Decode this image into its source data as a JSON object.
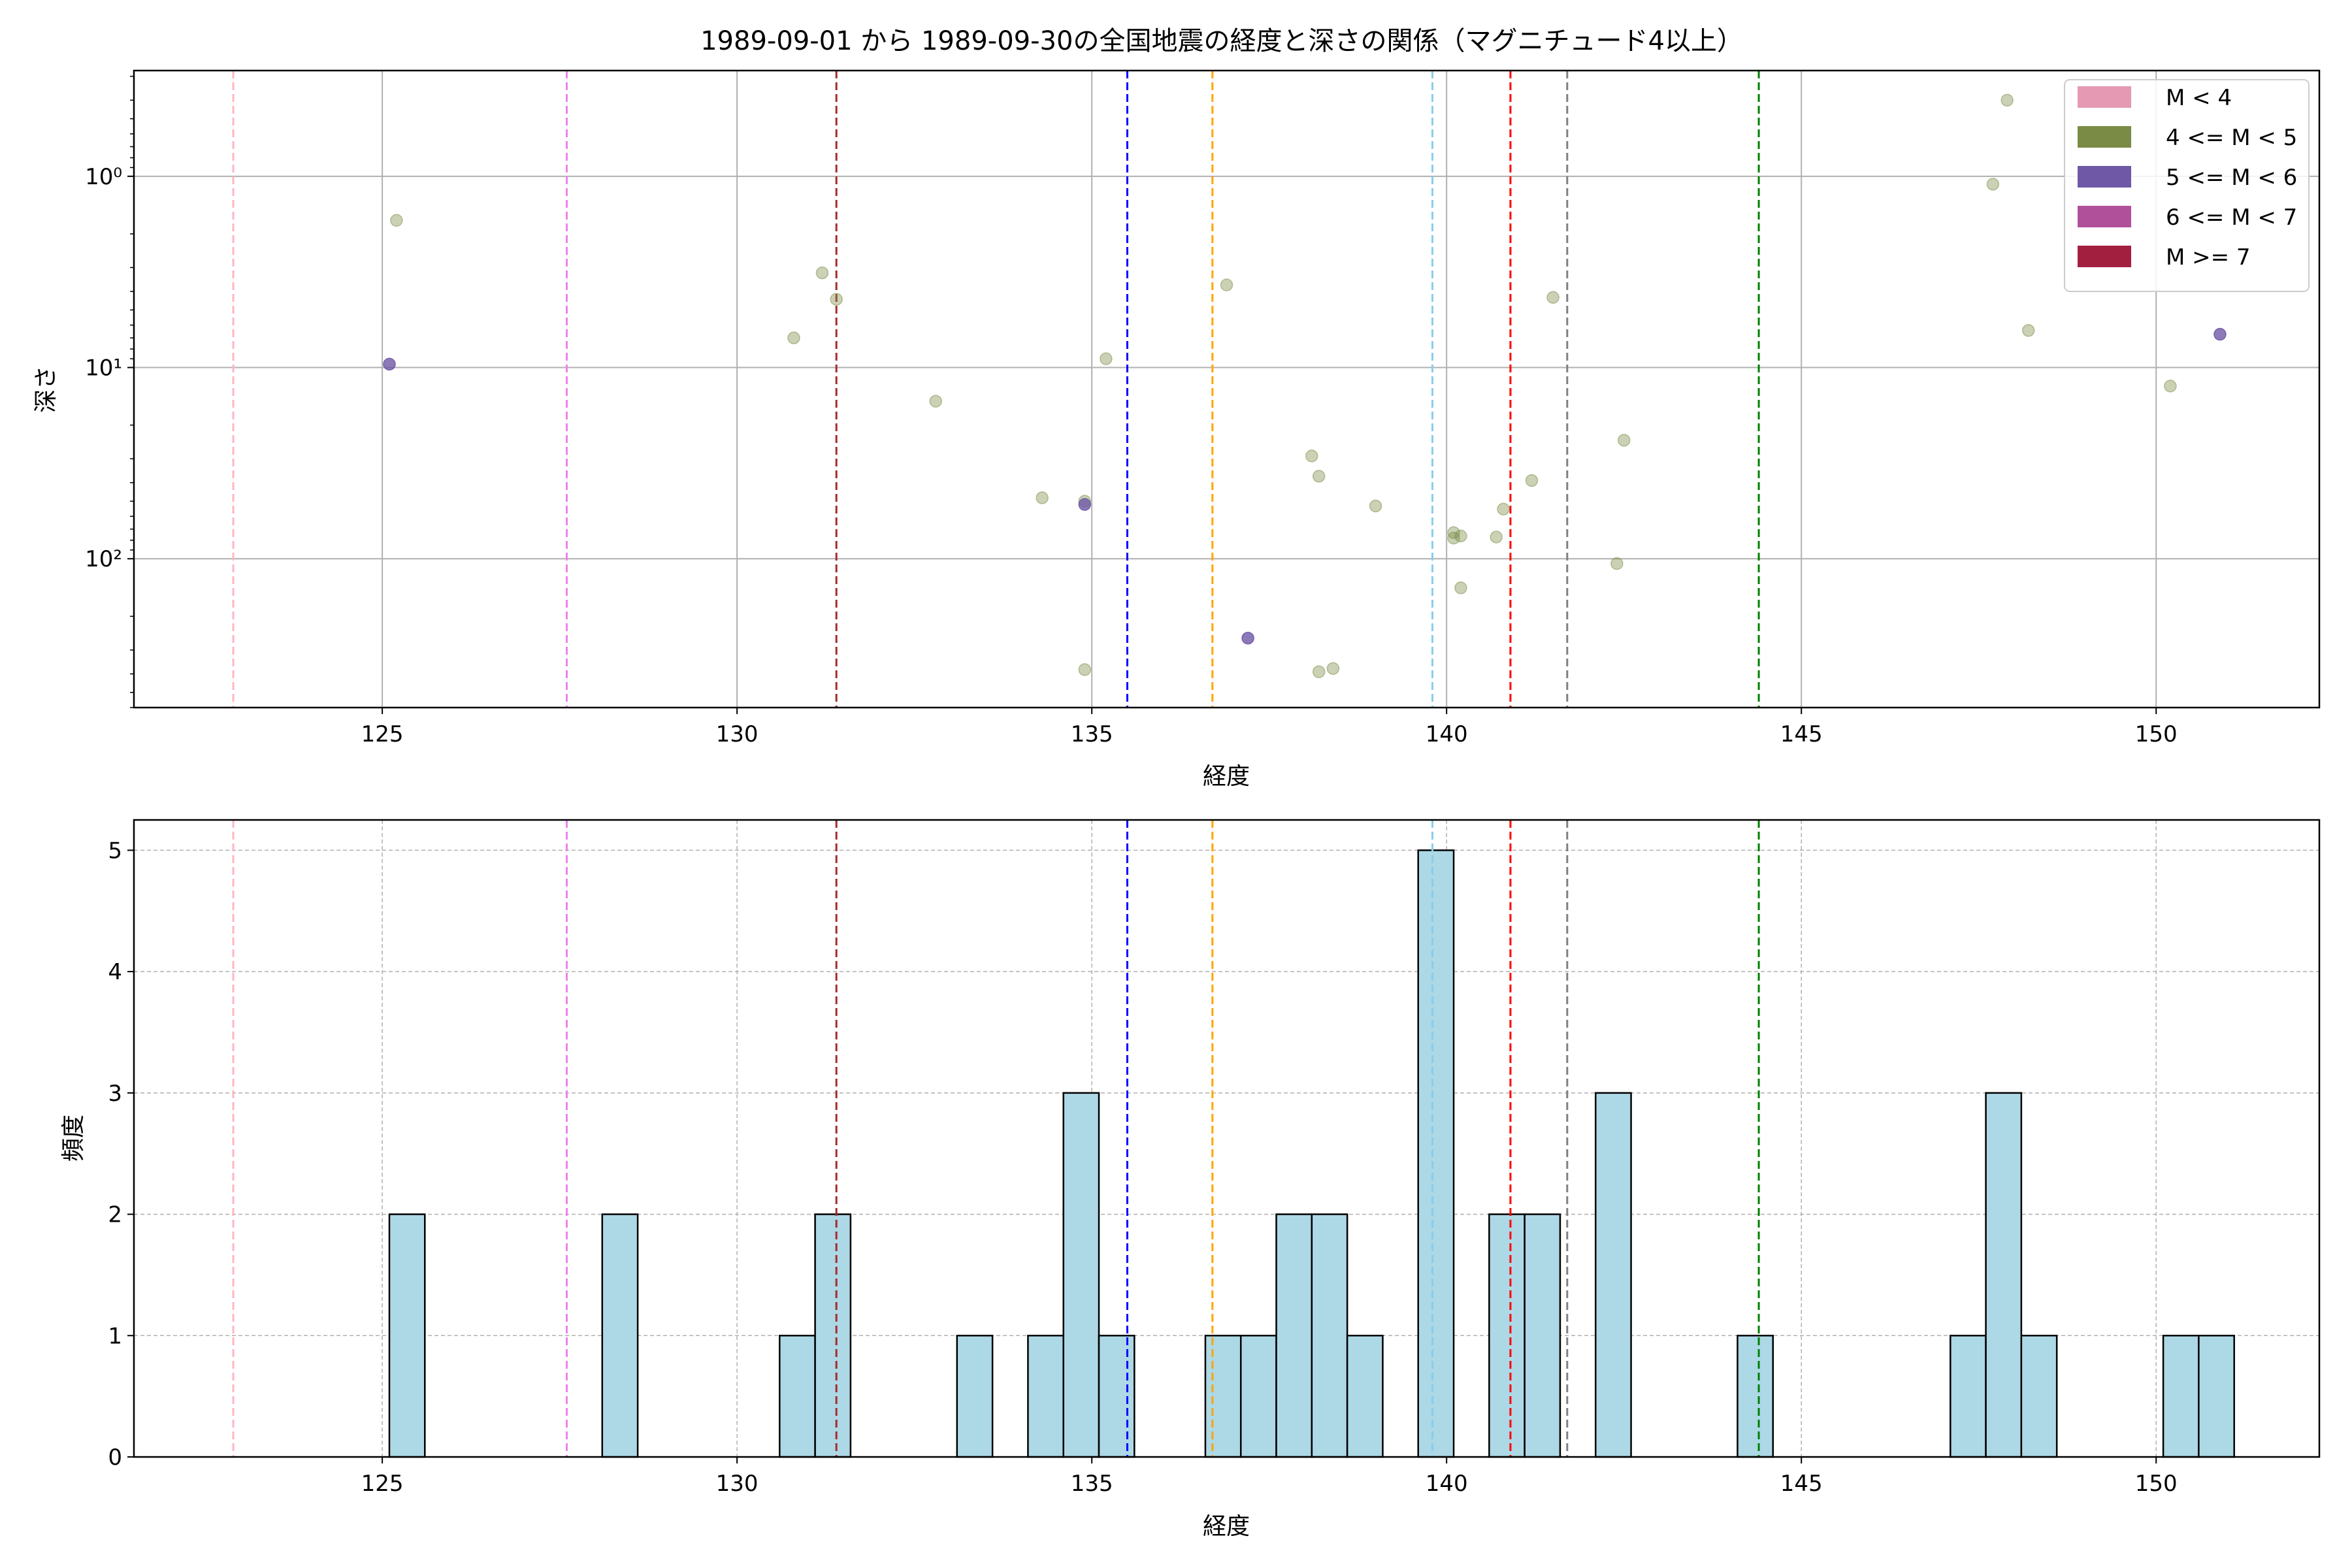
{
  "figure_title": "1989-09-01 から 1989-09-30の全国地震の経度と深さの関係（マグニチュード4以上）",
  "colors": {
    "grid": "#b0b0b0",
    "hist_fill": "#add8e6",
    "scatter_m4_5": "#7a8b45",
    "scatter_m5_6": "#6f58a6"
  },
  "chart_data": [
    {
      "type": "scatter",
      "title": "1989-09-01 から 1989-09-30の全国地震の経度と深さの関係（マグニチュード4以上）",
      "xlabel": "経度",
      "ylabel": "深さ",
      "xlim": [
        121.5,
        152.3
      ],
      "ylim": [
        0.28,
        600
      ],
      "yscale": "log",
      "yaxis_inverted": true,
      "grid": true,
      "x_ticks": [
        125,
        130,
        135,
        140,
        145,
        150
      ],
      "y_ticks": [
        {
          "value": 1,
          "label": "10⁰"
        },
        {
          "value": 10,
          "label": "10¹"
        },
        {
          "value": 100,
          "label": "10²"
        }
      ],
      "legend_position": "top-right",
      "legend": [
        {
          "label": "M < 4",
          "color": "#e599b3"
        },
        {
          "label": "4 <= M < 5",
          "color": "#7a8b45"
        },
        {
          "label": "5 <= M < 6",
          "color": "#6f58a6"
        },
        {
          "label": "6 <= M < 7",
          "color": "#b0509a"
        },
        {
          "label": "M >= 7",
          "color": "#a31f40"
        }
      ],
      "vlines": [
        {
          "x": 122.9,
          "color": "#ffb6c1"
        },
        {
          "x": 127.6,
          "color": "#ee82ee"
        },
        {
          "x": 131.4,
          "color": "#a52a2a"
        },
        {
          "x": 135.5,
          "color": "#0000ff"
        },
        {
          "x": 136.7,
          "color": "#ffa500"
        },
        {
          "x": 139.8,
          "color": "#87ceeb"
        },
        {
          "x": 140.9,
          "color": "#ff0000"
        },
        {
          "x": 141.7,
          "color": "#808080"
        },
        {
          "x": 144.4,
          "color": "#008000"
        }
      ],
      "series": [
        {
          "magnitude_class": "4 <= M < 5",
          "points": [
            {
              "x": 125.2,
              "y": 1.7
            },
            {
              "x": 130.8,
              "y": 7
            },
            {
              "x": 131.2,
              "y": 3.2
            },
            {
              "x": 131.4,
              "y": 4.4
            },
            {
              "x": 132.8,
              "y": 15
            },
            {
              "x": 134.3,
              "y": 48
            },
            {
              "x": 134.9,
              "y": 50
            },
            {
              "x": 134.9,
              "y": 380
            },
            {
              "x": 135.2,
              "y": 9
            },
            {
              "x": 136.9,
              "y": 3.7
            },
            {
              "x": 138.1,
              "y": 29
            },
            {
              "x": 138.2,
              "y": 37
            },
            {
              "x": 138.2,
              "y": 390
            },
            {
              "x": 138.4,
              "y": 375
            },
            {
              "x": 139.0,
              "y": 53
            },
            {
              "x": 140.1,
              "y": 73
            },
            {
              "x": 140.1,
              "y": 78
            },
            {
              "x": 140.2,
              "y": 76
            },
            {
              "x": 140.2,
              "y": 142
            },
            {
              "x": 140.7,
              "y": 77
            },
            {
              "x": 140.8,
              "y": 55
            },
            {
              "x": 141.2,
              "y": 39
            },
            {
              "x": 141.5,
              "y": 4.3
            },
            {
              "x": 142.4,
              "y": 106
            },
            {
              "x": 142.5,
              "y": 24
            },
            {
              "x": 147.7,
              "y": 1.1
            },
            {
              "x": 147.9,
              "y": 0.4
            },
            {
              "x": 148.2,
              "y": 6.4
            },
            {
              "x": 150.2,
              "y": 12.5
            }
          ]
        },
        {
          "magnitude_class": "5 <= M < 6",
          "points": [
            {
              "x": 125.1,
              "y": 9.6
            },
            {
              "x": 134.9,
              "y": 52
            },
            {
              "x": 137.2,
              "y": 260
            },
            {
              "x": 150.9,
              "y": 6.7
            }
          ]
        }
      ]
    },
    {
      "type": "bar",
      "xlabel": "経度",
      "ylabel": "頻度",
      "xlim": [
        121.5,
        152.3
      ],
      "ylim": [
        0,
        5.25
      ],
      "grid": true,
      "grid_style": "dashed",
      "x_ticks": [
        125,
        130,
        135,
        140,
        145,
        150
      ],
      "y_ticks": [
        0,
        1,
        2,
        3,
        4,
        5
      ],
      "bin_width": 0.5,
      "vlines": [
        {
          "x": 122.9,
          "color": "#ffb6c1"
        },
        {
          "x": 127.6,
          "color": "#ee82ee"
        },
        {
          "x": 131.4,
          "color": "#a52a2a"
        },
        {
          "x": 135.5,
          "color": "#0000ff"
        },
        {
          "x": 136.7,
          "color": "#ffa500"
        },
        {
          "x": 139.8,
          "color": "#87ceeb"
        },
        {
          "x": 140.9,
          "color": "#ff0000"
        },
        {
          "x": 141.7,
          "color": "#808080"
        },
        {
          "x": 144.4,
          "color": "#008000"
        }
      ],
      "bins": [
        {
          "x0": 125.1,
          "x1": 125.6,
          "count": 2
        },
        {
          "x0": 128.1,
          "x1": 128.6,
          "count": 2
        },
        {
          "x0": 130.6,
          "x1": 131.1,
          "count": 1
        },
        {
          "x0": 131.1,
          "x1": 131.6,
          "count": 2
        },
        {
          "x0": 133.1,
          "x1": 133.6,
          "count": 1
        },
        {
          "x0": 134.1,
          "x1": 134.6,
          "count": 1
        },
        {
          "x0": 134.6,
          "x1": 135.1,
          "count": 3
        },
        {
          "x0": 135.1,
          "x1": 135.6,
          "count": 1
        },
        {
          "x0": 136.6,
          "x1": 137.1,
          "count": 1
        },
        {
          "x0": 137.1,
          "x1": 137.6,
          "count": 1
        },
        {
          "x0": 137.6,
          "x1": 138.1,
          "count": 2
        },
        {
          "x0": 138.1,
          "x1": 138.6,
          "count": 2
        },
        {
          "x0": 138.6,
          "x1": 139.1,
          "count": 1
        },
        {
          "x0": 139.6,
          "x1": 140.1,
          "count": 5
        },
        {
          "x0": 140.6,
          "x1": 141.1,
          "count": 2
        },
        {
          "x0": 141.1,
          "x1": 141.6,
          "count": 2
        },
        {
          "x0": 142.1,
          "x1": 142.6,
          "count": 3
        },
        {
          "x0": 144.1,
          "x1": 144.6,
          "count": 1
        },
        {
          "x0": 147.1,
          "x1": 147.6,
          "count": 1
        },
        {
          "x0": 147.6,
          "x1": 148.1,
          "count": 3
        },
        {
          "x0": 148.1,
          "x1": 148.6,
          "count": 1
        },
        {
          "x0": 150.1,
          "x1": 150.6,
          "count": 1
        },
        {
          "x0": 150.6,
          "x1": 151.1,
          "count": 1
        }
      ]
    }
  ]
}
